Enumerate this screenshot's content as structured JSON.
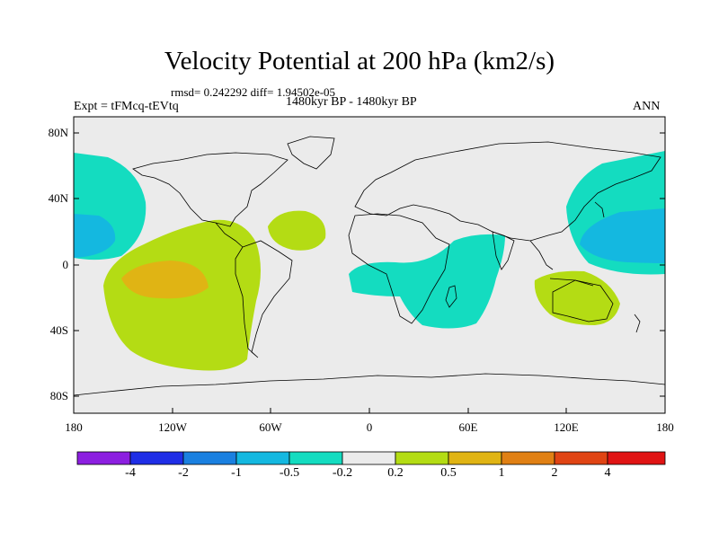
{
  "title": "Velocity Potential at 200 hPa (km2/s)",
  "stats": "rmsd= 0.242292 diff= 1.94502e-05",
  "period": "1480kyr BP - 1480kyr BP",
  "experiment": "Expt = tFMcq-tEVtq",
  "season": "ANN",
  "map": {
    "lat_labels": [
      "80N",
      "40N",
      "0",
      "40S",
      "80S"
    ],
    "lon_labels": [
      "180",
      "120W",
      "60W",
      "0",
      "60E",
      "120E",
      "180"
    ]
  },
  "colorbar": {
    "labels": [
      "-4",
      "-2",
      "-1",
      "-0.5",
      "-0.2",
      "0.2",
      "0.5",
      "1",
      "2",
      "4"
    ],
    "colors": [
      "#8c1fe0",
      "#1f2ee6",
      "#1a80e0",
      "#14b8e0",
      "#14dcc0",
      "#ebebeb",
      "#b4dc14",
      "#e0b414",
      "#e08014",
      "#e04414",
      "#e01414"
    ]
  }
}
